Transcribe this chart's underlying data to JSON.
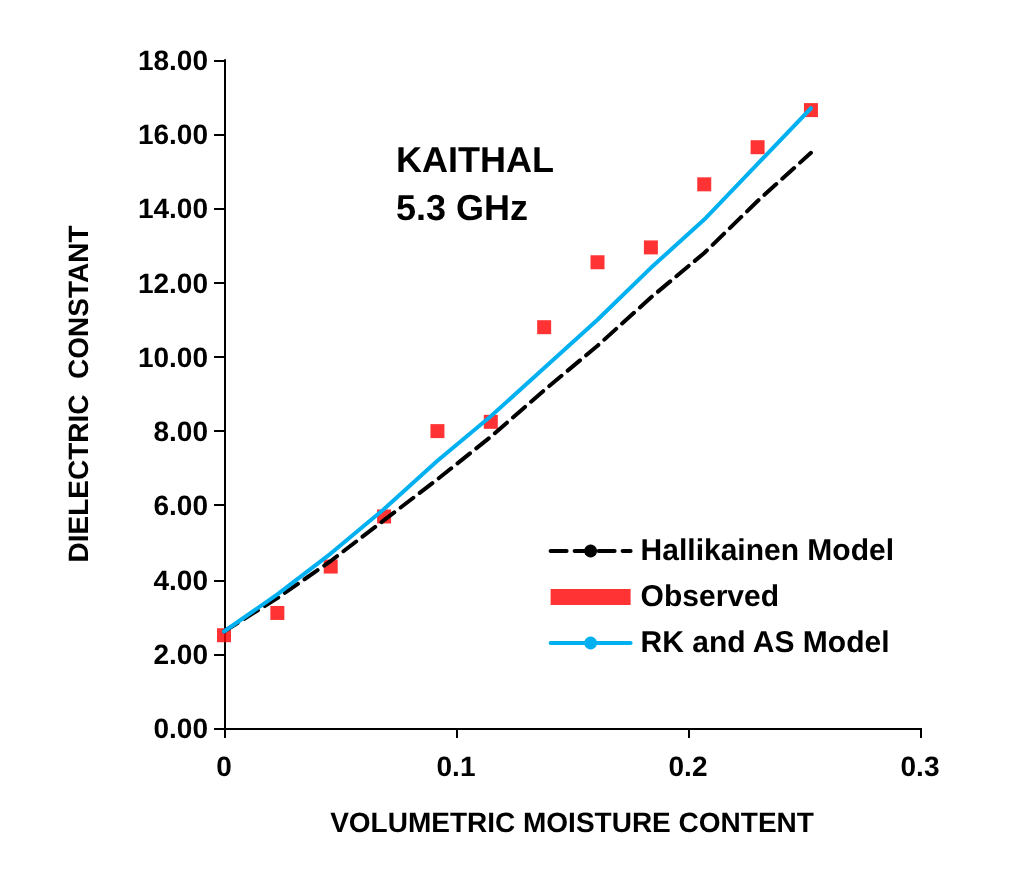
{
  "chart_data": {
    "type": "line",
    "xlabel": "VOLUMETRIC MOISTURE CONTENT",
    "ylabel": "DIELECTRIC  CONSTANT",
    "annotations": [
      "KAITHAL\n5.3 GHz"
    ],
    "x": [
      0,
      0.023,
      0.046,
      0.069,
      0.092,
      0.115,
      0.138,
      0.161,
      0.184,
      0.207,
      0.23,
      0.253
    ],
    "series": [
      {
        "name": "Hallikainen Model",
        "color": "#000000",
        "line_style": "dashed",
        "marker": "none",
        "values": [
          2.6,
          3.5,
          4.5,
          5.6,
          6.7,
          7.85,
          9.1,
          10.3,
          11.6,
          12.8,
          14.2,
          15.5
        ]
      },
      {
        "name": "Observed",
        "type": "scatter",
        "color": "#ff0000",
        "marker": "square",
        "values": [
          2.5,
          3.1,
          4.35,
          5.7,
          8.0,
          8.25,
          10.8,
          12.55,
          12.95,
          14.65,
          15.65,
          16.65
        ]
      },
      {
        "name": "RK and AS Model",
        "color": "#00b0f0",
        "line_style": "solid",
        "marker": "none",
        "values": [
          2.6,
          3.6,
          4.7,
          5.9,
          7.2,
          8.4,
          9.7,
          11.0,
          12.4,
          13.7,
          15.2,
          16.7
        ]
      }
    ],
    "xlim": [
      0,
      0.3
    ],
    "xticks": [
      0,
      0.1,
      0.2,
      0.3
    ],
    "ylim": [
      0,
      18
    ],
    "yticks": [
      {
        "value": 0,
        "label": "0.00"
      },
      {
        "value": 2,
        "label": "2.00"
      },
      {
        "value": 4,
        "label": "4.00"
      },
      {
        "value": 6,
        "label": "6.00"
      },
      {
        "value": 8,
        "label": "8.00"
      },
      {
        "value": 10,
        "label": "10.00"
      },
      {
        "value": 12,
        "label": "12.00"
      },
      {
        "value": 14,
        "label": "14.00"
      },
      {
        "value": 16,
        "label": "16.00"
      },
      {
        "value": 18,
        "label": "18.00"
      }
    ],
    "grid": false,
    "legend": "bottom right"
  }
}
